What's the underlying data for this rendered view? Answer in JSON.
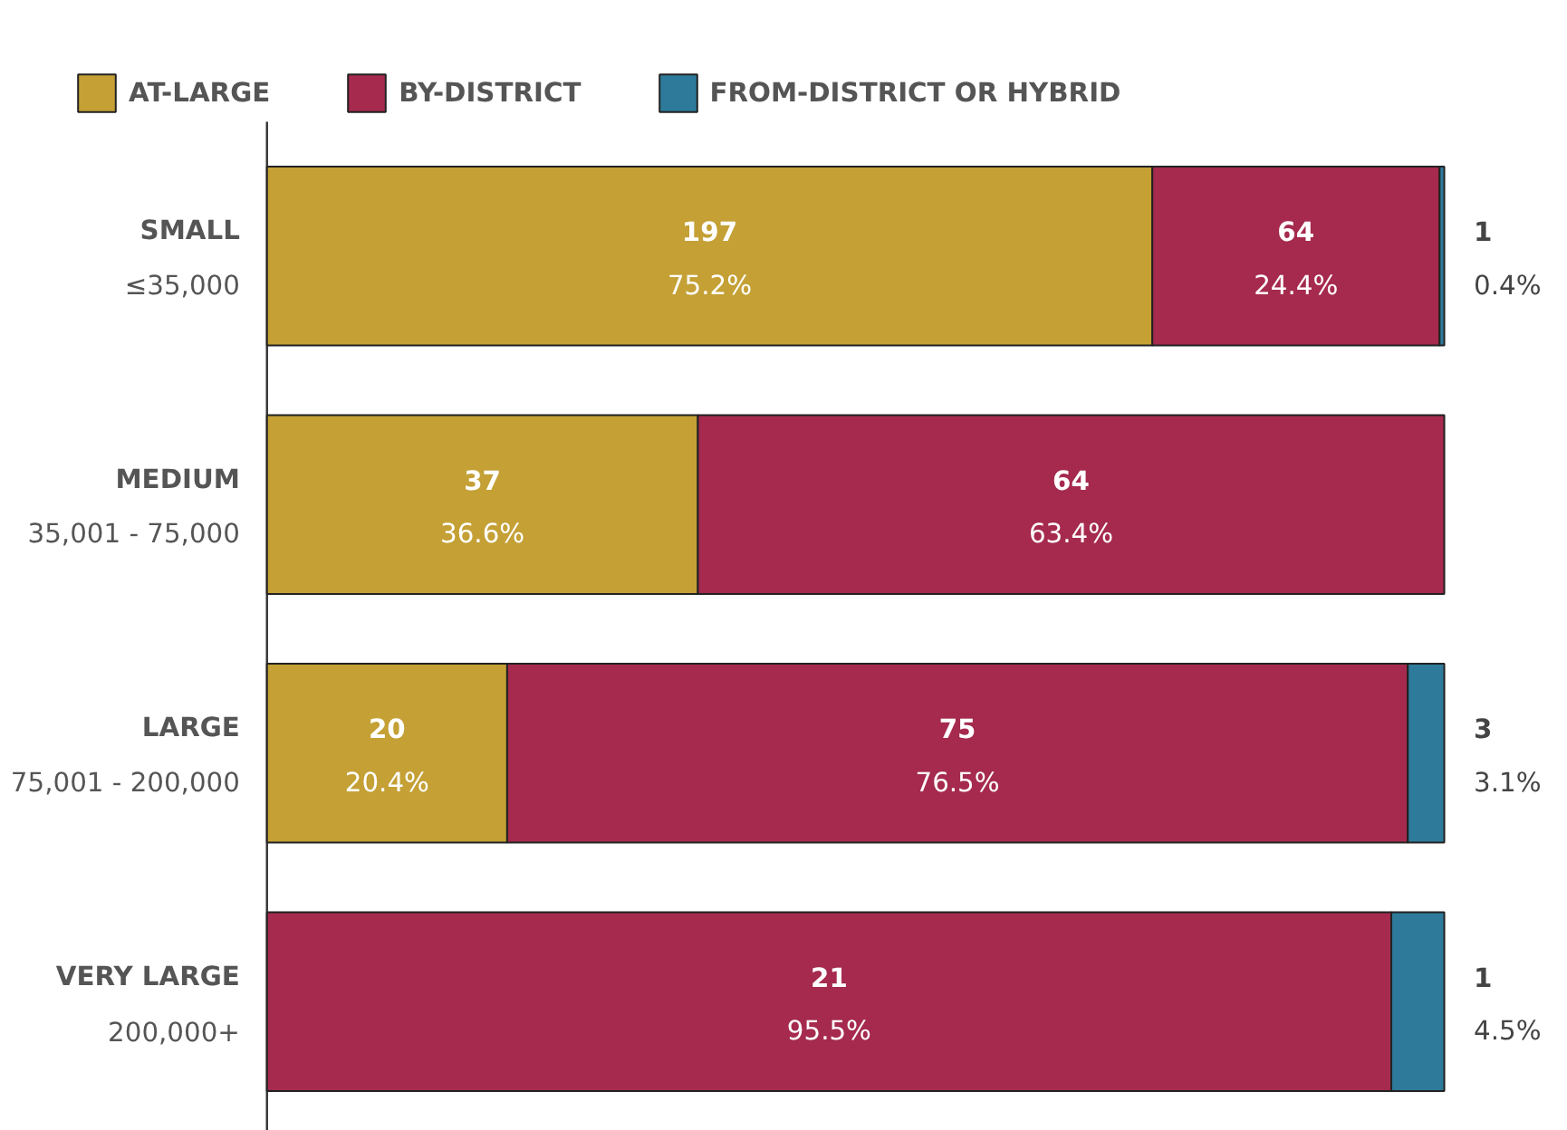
{
  "chart_data": {
    "type": "bar",
    "orientation": "horizontal",
    "stacked": true,
    "grid": false,
    "legend": "top left",
    "categories": [
      "SMALL\n≤35,000",
      "MEDIUM\n35,001 - 75,000",
      "LARGE\n75,001 - 200,000",
      "VERY LARGE\n200,000+"
    ],
    "series": [
      {
        "name": "AT-LARGE",
        "color": "#c4a035",
        "values": [
          75.2,
          36.6,
          20.4,
          null
        ],
        "value_labels": [
          "197\n75.2%",
          "37\n36.6%",
          "20\n20.4%",
          null
        ]
      },
      {
        "name": "BY-DISTRICT",
        "color": "#a52a4e",
        "values": [
          24.4,
          63.4,
          76.5,
          95.5
        ],
        "value_labels": [
          "64\n24.4%",
          "64\n63.4%",
          "75\n76.5%",
          "21\n95.5%"
        ]
      },
      {
        "name": "FROM-DISTRICT OR HYBRID",
        "color": "#2e7a9a",
        "values": [
          0.4,
          null,
          3.1,
          4.5
        ],
        "value_labels": [
          "1\n0.4%",
          null,
          "3\n3.1%",
          "1\n4.5%"
        ]
      }
    ]
  }
}
